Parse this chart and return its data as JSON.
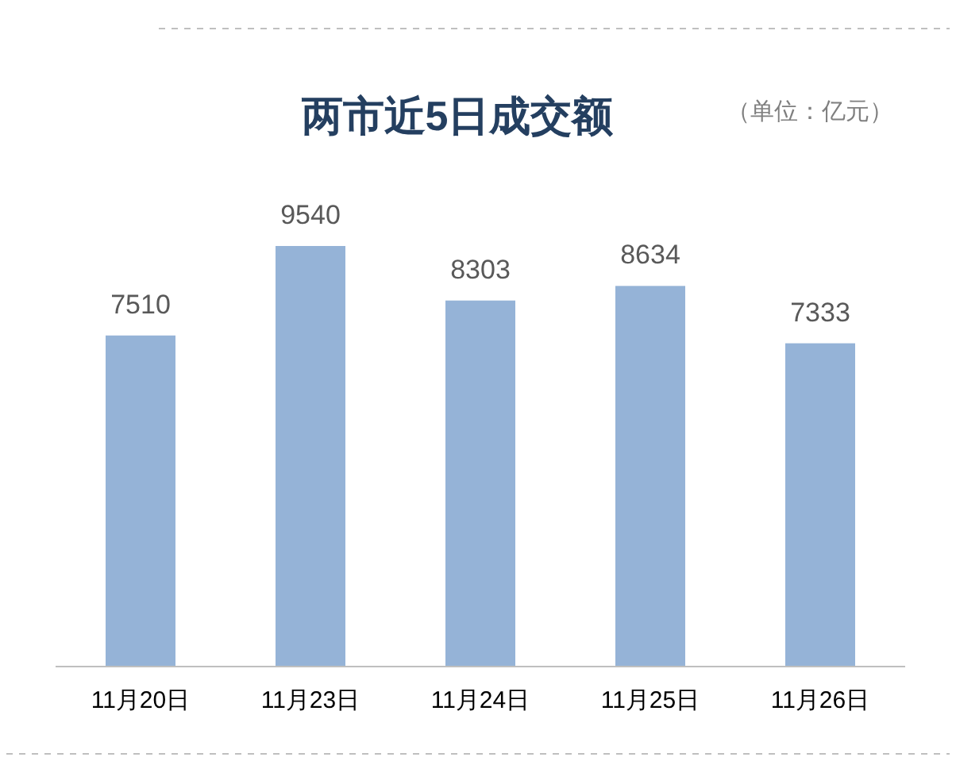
{
  "chart_data": {
    "type": "bar",
    "title": "两市近5日成交额",
    "annotations": [
      "（单位：亿元）"
    ],
    "categories": [
      "11月20日",
      "11月23日",
      "11月24日",
      "11月25日",
      "11月26日"
    ],
    "values": [
      7510,
      9540,
      8303,
      8634,
      7333
    ],
    "color": "#95b3d7",
    "data_labels": true
  }
}
